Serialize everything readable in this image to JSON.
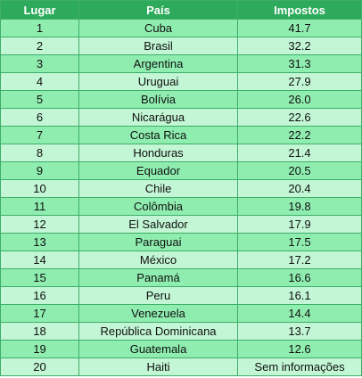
{
  "table": {
    "headers": {
      "rank": "Lugar",
      "country": "País",
      "taxes": "Impostos"
    },
    "rows": [
      {
        "rank": "1",
        "country": "Cuba",
        "taxes": "41.7"
      },
      {
        "rank": "2",
        "country": "Brasil",
        "taxes": "32.2"
      },
      {
        "rank": "3",
        "country": "Argentina",
        "taxes": "31.3"
      },
      {
        "rank": "4",
        "country": "Uruguai",
        "taxes": "27.9"
      },
      {
        "rank": "5",
        "country": "Bolívia",
        "taxes": "26.0"
      },
      {
        "rank": "6",
        "country": "Nicarágua",
        "taxes": "22.6"
      },
      {
        "rank": "7",
        "country": "Costa Rica",
        "taxes": "22.2"
      },
      {
        "rank": "8",
        "country": "Honduras",
        "taxes": "21.4"
      },
      {
        "rank": "9",
        "country": "Equador",
        "taxes": "20.5"
      },
      {
        "rank": "10",
        "country": "Chile",
        "taxes": "20.4"
      },
      {
        "rank": "11",
        "country": "Colômbia",
        "taxes": "19.8"
      },
      {
        "rank": "12",
        "country": "El Salvador",
        "taxes": "17.9"
      },
      {
        "rank": "13",
        "country": "Paraguai",
        "taxes": "17.5"
      },
      {
        "rank": "14",
        "country": "México",
        "taxes": "17.2"
      },
      {
        "rank": "15",
        "country": "Panamá",
        "taxes": "16.6"
      },
      {
        "rank": "16",
        "country": "Peru",
        "taxes": "16.1"
      },
      {
        "rank": "17",
        "country": "Venezuela",
        "taxes": "14.4"
      },
      {
        "rank": "18",
        "country": "República Dominicana",
        "taxes": "13.7"
      },
      {
        "rank": "19",
        "country": "Guatemala",
        "taxes": "12.6"
      },
      {
        "rank": "20",
        "country": "Haiti",
        "taxes": "Sem informações"
      }
    ]
  },
  "colors": {
    "header_bg": "#2eaa5c",
    "row_dark": "#8fedb0",
    "row_light": "#c2f6d4",
    "border": "#3fae6a"
  }
}
